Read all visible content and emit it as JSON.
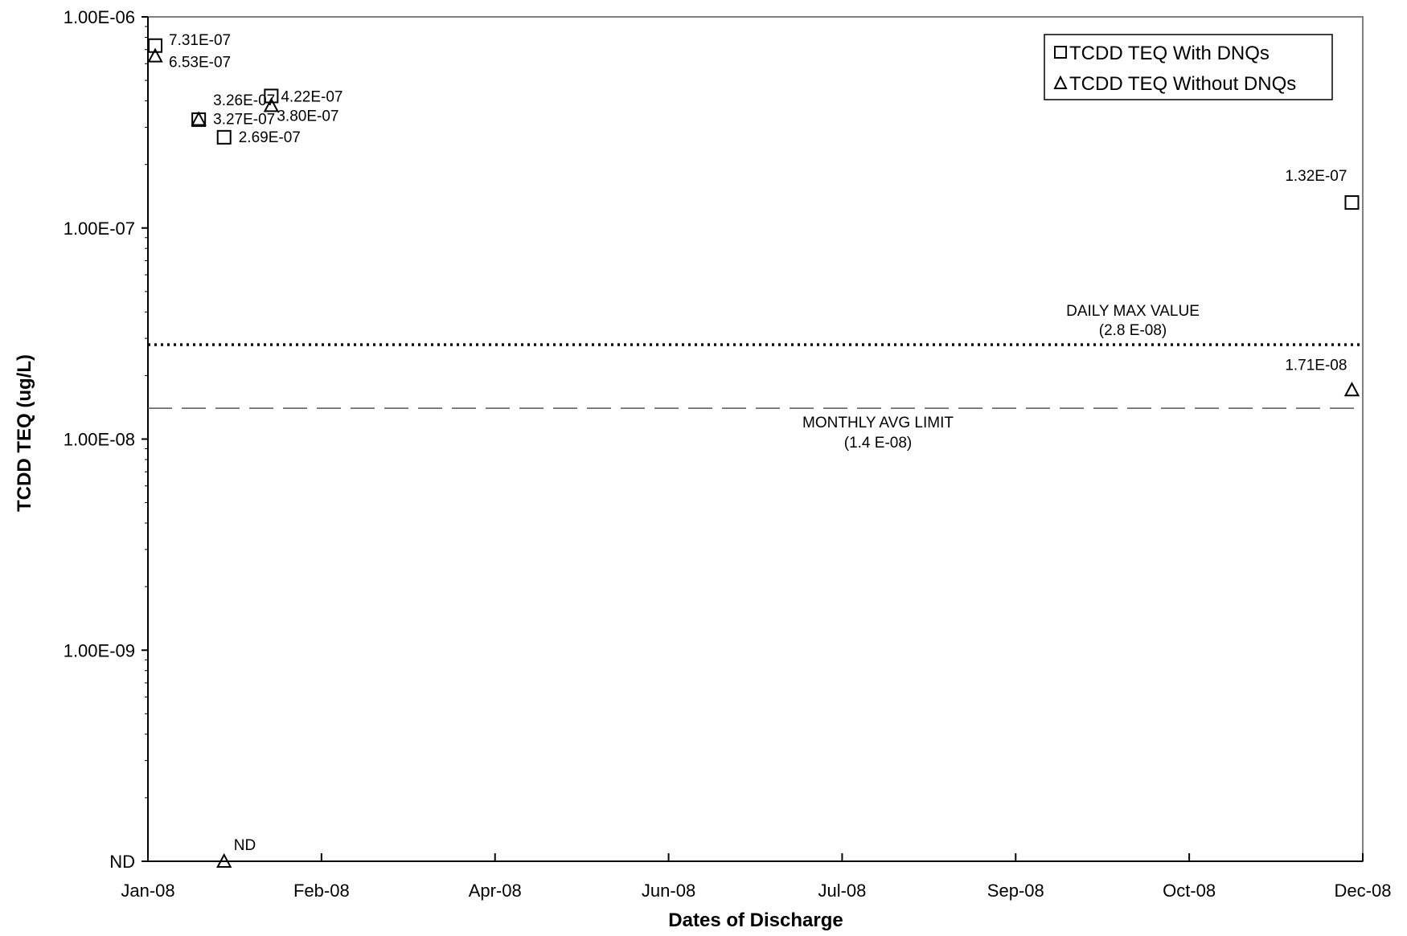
{
  "chart_data": {
    "type": "scatter",
    "title": "",
    "xlabel": "Dates of Discharge",
    "ylabel": "TCDD TEQ (ug/L)",
    "x_type": "date",
    "xlim": [
      "2008-01-01",
      "2008-12-01"
    ],
    "x_tick_labels": [
      "Jan-08",
      "Feb-08",
      "Apr-08",
      "Jun-08",
      "Jul-08",
      "Sep-08",
      "Oct-08",
      "Dec-08"
    ],
    "y_scale": "log",
    "ylim": [
      1e-10,
      1e-06
    ],
    "y_ticks": [
      {
        "value": 1e-10,
        "label": "ND"
      },
      {
        "value": 1e-09,
        "label": "1.00E-09"
      },
      {
        "value": 1e-08,
        "label": "1.00E-08"
      },
      {
        "value": 1e-07,
        "label": "1.00E-07"
      },
      {
        "value": 1e-06,
        "label": "1.00E-06"
      }
    ],
    "grid": false,
    "legend_position": "top-right",
    "series": [
      {
        "name": "TCDD TEQ With DNQs",
        "marker": "square",
        "points": [
          {
            "x": "2008-01-03",
            "y": 7.31e-07,
            "label": "7.31E-07"
          },
          {
            "x": "2008-01-15",
            "y": 3.26e-07,
            "label": "3.26E-07"
          },
          {
            "x": "2008-01-22",
            "y": 2.69e-07,
            "label": "2.69E-07"
          },
          {
            "x": "2008-02-04",
            "y": 4.22e-07,
            "label": "4.22E-07"
          },
          {
            "x": "2008-11-28",
            "y": 1.32e-07,
            "label": "1.32E-07"
          }
        ]
      },
      {
        "name": "TCDD TEQ Without DNQs",
        "marker": "triangle",
        "points": [
          {
            "x": "2008-01-03",
            "y": 6.53e-07,
            "label": "6.53E-07"
          },
          {
            "x": "2008-01-15",
            "y": 3.27e-07,
            "label": "3.27E-07"
          },
          {
            "x": "2008-01-22",
            "y": 1e-10,
            "label": "ND"
          },
          {
            "x": "2008-02-04",
            "y": 3.8e-07,
            "label": "3.80E-07"
          },
          {
            "x": "2008-11-28",
            "y": 1.71e-08,
            "label": "1.71E-08"
          }
        ]
      }
    ],
    "reference_lines": [
      {
        "name": "daily-max",
        "y": 2.8e-08,
        "style": "dotted",
        "label_line1": "DAILY MAX VALUE",
        "label_line2": "(2.8 E-08)"
      },
      {
        "name": "monthly-avg",
        "y": 1.4e-08,
        "style": "dashed",
        "label_line1": "MONTHLY AVG LIMIT",
        "label_line2": "(1.4 E-08)"
      }
    ]
  }
}
